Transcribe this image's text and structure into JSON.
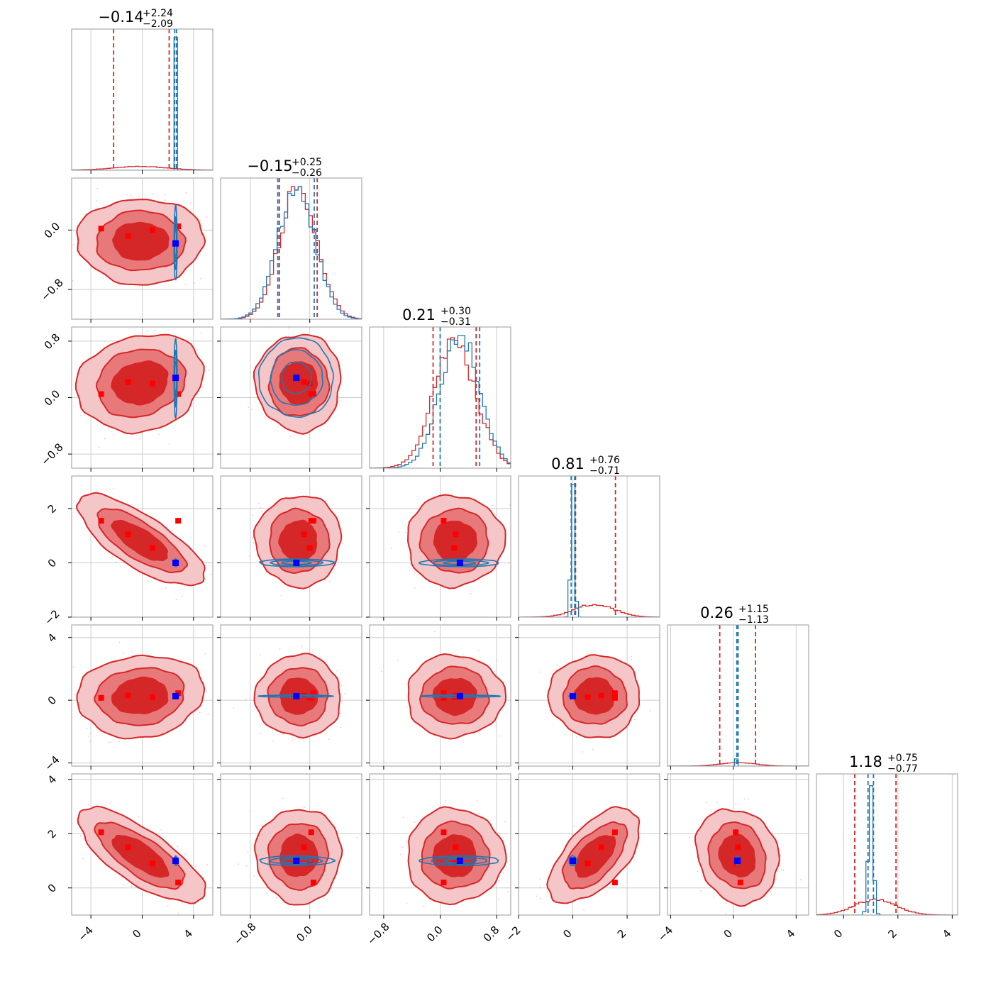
{
  "chart_data": {
    "type": "corner",
    "n_params": 6,
    "colors": {
      "red": "#d62728",
      "red_mid": "#e8797b",
      "red_light": "#f4c6c7",
      "blue": "#1f77b4",
      "truth_red": "#ff0000",
      "truth_blue": "#0000ff",
      "grid": "#cccccc",
      "frame": "#999999"
    },
    "titles": [
      {
        "median": "−0.14",
        "plus": "+2.24",
        "minus": "−2.09"
      },
      {
        "median": "−0.15",
        "plus": "+0.25",
        "minus": "−0.26"
      },
      {
        "median": "0.21",
        "plus": "+0.30",
        "minus": "−0.31"
      },
      {
        "median": "0.81",
        "plus": "+0.76",
        "minus": "−0.71"
      },
      {
        "median": "0.26",
        "plus": "+1.15",
        "minus": "−1.13"
      },
      {
        "median": "1.18",
        "plus": "+0.75",
        "minus": "−0.77"
      }
    ],
    "ranges": [
      [
        -5.5,
        5.5
      ],
      [
        -1.2,
        0.7
      ],
      [
        -1.0,
        1.0
      ],
      [
        -2.0,
        3.2
      ],
      [
        -4.2,
        4.8
      ],
      [
        -1.0,
        4.2
      ]
    ],
    "ticks": [
      {
        "values": [
          -4,
          0,
          4
        ],
        "labels": [
          "−4",
          "0",
          "4"
        ]
      },
      {
        "values": [
          -0.8,
          0.0
        ],
        "labels": [
          "−0.8",
          "0.0"
        ]
      },
      {
        "values": [
          -0.8,
          0.0,
          0.8
        ],
        "labels": [
          "−0.8",
          "0.0",
          "0.8"
        ]
      },
      {
        "values": [
          -2,
          0,
          2
        ],
        "labels": [
          "−2",
          "0",
          "2"
        ]
      },
      {
        "values": [
          -4,
          0,
          4
        ],
        "labels": [
          "−4",
          "0",
          "4"
        ]
      },
      {
        "values": [
          0,
          2,
          4
        ],
        "labels": [
          "0",
          "2",
          "4"
        ]
      }
    ],
    "red_series": {
      "center": [
        -0.14,
        -0.15,
        0.21,
        0.81,
        0.26,
        1.18
      ],
      "sigma": [
        2.15,
        0.25,
        0.3,
        0.73,
        1.14,
        0.76
      ],
      "quantile_lines": [
        [
          -2.23,
          2.1
        ],
        [
          -0.41,
          0.1
        ],
        [
          -0.1,
          0.51
        ],
        [
          0.1,
          1.57
        ],
        [
          -0.87,
          1.41
        ],
        [
          0.41,
          1.93
        ]
      ]
    },
    "blue_series": {
      "center": [
        2.6,
        -0.18,
        0.28,
        0.0,
        0.26,
        1.0
      ],
      "sigma": [
        0.06,
        0.25,
        0.28,
        0.07,
        0.03,
        0.09
      ],
      "quantile_lines": [
        [
          2.53,
          2.67
        ],
        [
          -0.43,
          0.06
        ],
        [
          0.0,
          0.56
        ],
        [
          -0.06,
          0.07
        ],
        [
          0.22,
          0.3
        ],
        [
          0.9,
          1.1
        ]
      ]
    },
    "correlations": [
      {
        "i": 3,
        "j": 0,
        "rho": -0.75
      },
      {
        "i": 5,
        "j": 0,
        "rho": -0.75
      },
      {
        "i": 5,
        "j": 3,
        "rho": 0.6
      },
      {
        "i": 2,
        "j": 0,
        "rho": 0.15
      },
      {
        "i": 4,
        "j": 0,
        "rho": 0.1
      },
      {
        "i": 5,
        "j": 4,
        "rho": -0.15
      }
    ],
    "truth_red_points": [
      [
        -3.2,
        0.02,
        0.05,
        1.55,
        0.15,
        2.05
      ],
      [
        -1.1,
        -0.08,
        0.22,
        1.05,
        0.3,
        1.5
      ],
      [
        0.8,
        0.0,
        0.2,
        0.55,
        0.2,
        0.9
      ],
      [
        2.8,
        0.05,
        0.05,
        1.55,
        0.45,
        0.2
      ]
    ],
    "truth_blue_point": [
      2.6,
      -0.18,
      0.28,
      0.0,
      0.26,
      1.0
    ]
  }
}
